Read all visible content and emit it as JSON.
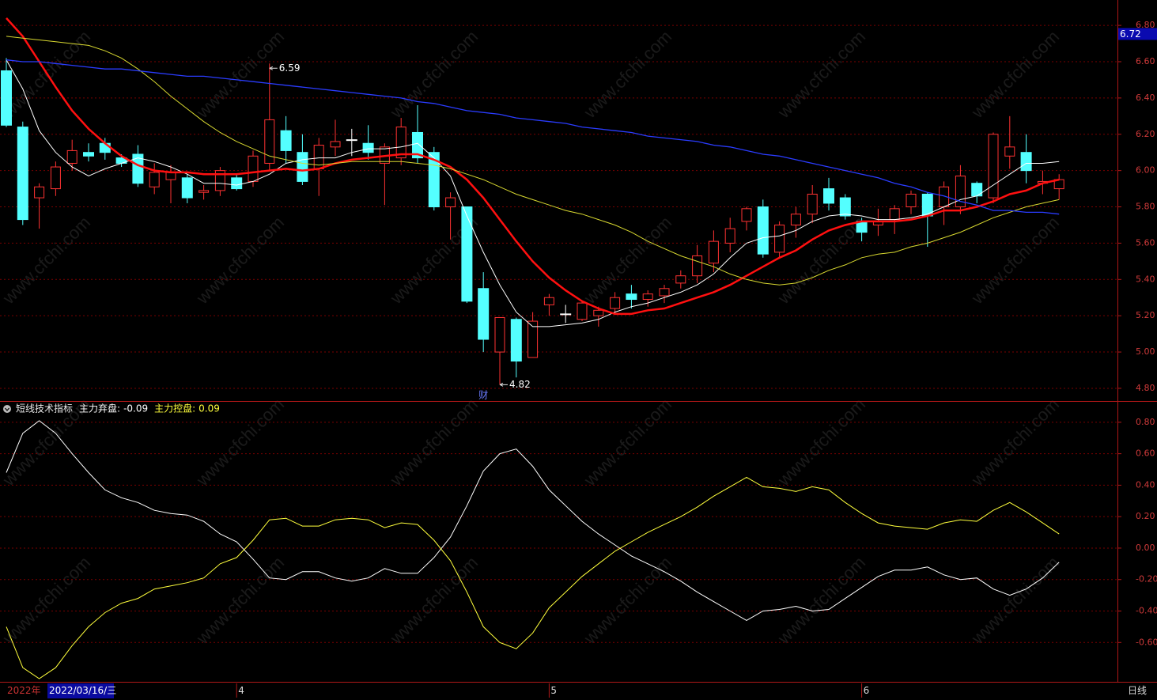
{
  "chart_data": {
    "type": "candlestick",
    "categories": [
      "2022年",
      null,
      null,
      null,
      null,
      null,
      null,
      null,
      null,
      null,
      null,
      null,
      null,
      null,
      "4",
      null,
      null,
      null,
      null,
      null,
      null,
      null,
      null,
      null,
      null,
      null,
      null,
      null,
      null,
      null,
      null,
      null,
      null,
      "5",
      null,
      null,
      null,
      null,
      null,
      null,
      null,
      null,
      null,
      null,
      null,
      null,
      null,
      null,
      null,
      null,
      null,
      null,
      "6",
      null,
      null,
      null,
      null,
      null,
      null,
      null,
      null,
      null,
      null,
      null,
      null
    ],
    "event_markers": [
      null,
      null,
      null,
      null,
      null,
      null,
      null,
      null,
      null,
      null,
      null,
      null,
      null,
      null,
      null,
      null,
      null,
      null,
      null,
      null,
      null,
      null,
      null,
      null,
      null,
      null,
      null,
      null,
      null,
      "财",
      null,
      null,
      null,
      null,
      null,
      null,
      null,
      null,
      null,
      null,
      null,
      null,
      null,
      null,
      null,
      null,
      null,
      null,
      null,
      null,
      null,
      null,
      null,
      null,
      null,
      null,
      null,
      null,
      null,
      null,
      null,
      null,
      null,
      null,
      null
    ],
    "cursor_date": "2022/03/16/三",
    "period": "日线",
    "watermark": "www.cfchi.com",
    "grid": true,
    "price_panel": {
      "ylim": [
        4.73,
        6.94
      ],
      "yticks": [
        {
          "value": 4.8,
          "label": "4.80"
        },
        {
          "value": 5.0,
          "label": "5.00"
        },
        {
          "value": 5.2,
          "label": "5.20"
        },
        {
          "value": 5.4,
          "label": "5.40"
        },
        {
          "value": 5.6,
          "label": "5.60"
        },
        {
          "value": 5.8,
          "label": "5.80"
        },
        {
          "value": 6.0,
          "label": "6.00"
        },
        {
          "value": 6.2,
          "label": "6.20"
        },
        {
          "value": 6.4,
          "label": "6.40"
        },
        {
          "value": 6.6,
          "label": "6.60"
        },
        {
          "value": 6.8,
          "label": "6.80"
        }
      ],
      "cursor_price": 6.72,
      "up_color": "#ff3232",
      "down_color": "#54ffff",
      "doji_color": "#ffffff",
      "annotate_high": 16,
      "annotate_low": 30,
      "candles": [
        {
          "open": 6.55,
          "high": 6.62,
          "low": 6.24,
          "close": 6.25
        },
        {
          "open": 6.24,
          "high": 6.27,
          "low": 5.7,
          "close": 5.73
        },
        {
          "open": 5.85,
          "high": 5.93,
          "low": 5.68,
          "close": 5.91
        },
        {
          "open": 5.9,
          "high": 6.05,
          "low": 5.86,
          "close": 6.02
        },
        {
          "open": 6.04,
          "high": 6.17,
          "low": 6.0,
          "close": 6.11
        },
        {
          "open": 6.1,
          "high": 6.15,
          "low": 6.05,
          "close": 6.08
        },
        {
          "open": 6.15,
          "high": 6.18,
          "low": 6.06,
          "close": 6.1
        },
        {
          "open": 6.07,
          "high": 6.09,
          "low": 6.02,
          "close": 6.04
        },
        {
          "open": 6.09,
          "high": 6.14,
          "low": 5.91,
          "close": 5.93
        },
        {
          "open": 5.91,
          "high": 6.04,
          "low": 5.87,
          "close": 5.99
        },
        {
          "open": 5.95,
          "high": 6.03,
          "low": 5.82,
          "close": 5.99
        },
        {
          "open": 5.96,
          "high": 5.98,
          "low": 5.82,
          "close": 5.85
        },
        {
          "open": 5.88,
          "high": 5.92,
          "low": 5.84,
          "close": 5.89
        },
        {
          "open": 5.89,
          "high": 6.02,
          "low": 5.86,
          "close": 6.0
        },
        {
          "open": 5.96,
          "high": 5.98,
          "low": 5.89,
          "close": 5.9
        },
        {
          "open": 5.94,
          "high": 6.11,
          "low": 5.91,
          "close": 6.08
        },
        {
          "open": 6.04,
          "high": 6.59,
          "low": 6.0,
          "close": 6.28
        },
        {
          "open": 6.22,
          "high": 6.3,
          "low": 6.04,
          "close": 6.11
        },
        {
          "open": 6.1,
          "high": 6.2,
          "low": 5.92,
          "close": 5.94
        },
        {
          "open": 6.01,
          "high": 6.18,
          "low": 5.86,
          "close": 6.14
        },
        {
          "open": 6.13,
          "high": 6.28,
          "low": 6.08,
          "close": 6.16
        },
        {
          "open": 6.17,
          "high": 6.23,
          "low": 6.08,
          "close": 6.17
        },
        {
          "open": 6.15,
          "high": 6.25,
          "low": 6.06,
          "close": 6.1
        },
        {
          "open": 6.04,
          "high": 6.15,
          "low": 5.81,
          "close": 6.13
        },
        {
          "open": 6.07,
          "high": 6.29,
          "low": 6.03,
          "close": 6.24
        },
        {
          "open": 6.21,
          "high": 6.36,
          "low": 6.04,
          "close": 6.07
        },
        {
          "open": 6.1,
          "high": 6.13,
          "low": 5.78,
          "close": 5.8
        },
        {
          "open": 5.8,
          "high": 5.88,
          "low": 5.62,
          "close": 5.85
        },
        {
          "open": 5.8,
          "high": 5.8,
          "low": 5.27,
          "close": 5.28
        },
        {
          "open": 5.35,
          "high": 5.44,
          "low": 5.0,
          "close": 5.07
        },
        {
          "open": 5.0,
          "high": 5.19,
          "low": 4.82,
          "close": 5.19
        },
        {
          "open": 5.18,
          "high": 5.19,
          "low": 4.86,
          "close": 4.95
        },
        {
          "open": 4.97,
          "high": 5.22,
          "low": 4.97,
          "close": 5.17
        },
        {
          "open": 5.26,
          "high": 5.32,
          "low": 5.2,
          "close": 5.3
        },
        {
          "open": 5.21,
          "high": 5.26,
          "low": 5.16,
          "close": 5.21
        },
        {
          "open": 5.18,
          "high": 5.28,
          "low": 5.17,
          "close": 5.27
        },
        {
          "open": 5.2,
          "high": 5.25,
          "low": 5.14,
          "close": 5.23
        },
        {
          "open": 5.24,
          "high": 5.33,
          "low": 5.21,
          "close": 5.3
        },
        {
          "open": 5.32,
          "high": 5.37,
          "low": 5.24,
          "close": 5.29
        },
        {
          "open": 5.29,
          "high": 5.34,
          "low": 5.25,
          "close": 5.32
        },
        {
          "open": 5.31,
          "high": 5.37,
          "low": 5.27,
          "close": 5.35
        },
        {
          "open": 5.38,
          "high": 5.45,
          "low": 5.35,
          "close": 5.42
        },
        {
          "open": 5.42,
          "high": 5.59,
          "low": 5.38,
          "close": 5.53
        },
        {
          "open": 5.49,
          "high": 5.67,
          "low": 5.44,
          "close": 5.61
        },
        {
          "open": 5.6,
          "high": 5.74,
          "low": 5.55,
          "close": 5.68
        },
        {
          "open": 5.72,
          "high": 5.8,
          "low": 5.67,
          "close": 5.79
        },
        {
          "open": 5.8,
          "high": 5.84,
          "low": 5.52,
          "close": 5.54
        },
        {
          "open": 5.55,
          "high": 5.72,
          "low": 5.52,
          "close": 5.7
        },
        {
          "open": 5.7,
          "high": 5.8,
          "low": 5.63,
          "close": 5.76
        },
        {
          "open": 5.76,
          "high": 5.92,
          "low": 5.71,
          "close": 5.87
        },
        {
          "open": 5.9,
          "high": 5.96,
          "low": 5.78,
          "close": 5.82
        },
        {
          "open": 5.85,
          "high": 5.87,
          "low": 5.73,
          "close": 5.75
        },
        {
          "open": 5.72,
          "high": 5.74,
          "low": 5.61,
          "close": 5.66
        },
        {
          "open": 5.7,
          "high": 5.79,
          "low": 5.64,
          "close": 5.72
        },
        {
          "open": 5.73,
          "high": 5.81,
          "low": 5.65,
          "close": 5.79
        },
        {
          "open": 5.8,
          "high": 5.89,
          "low": 5.76,
          "close": 5.87
        },
        {
          "open": 5.87,
          "high": 5.88,
          "low": 5.58,
          "close": 5.75
        },
        {
          "open": 5.8,
          "high": 5.94,
          "low": 5.7,
          "close": 5.91
        },
        {
          "open": 5.8,
          "high": 6.03,
          "low": 5.76,
          "close": 5.97
        },
        {
          "open": 5.93,
          "high": 5.94,
          "low": 5.82,
          "close": 5.86
        },
        {
          "open": 5.85,
          "high": 6.21,
          "low": 5.82,
          "close": 6.2
        },
        {
          "open": 6.08,
          "high": 6.3,
          "low": 6.01,
          "close": 6.13
        },
        {
          "open": 6.1,
          "high": 6.2,
          "low": 5.93,
          "close": 6.0
        },
        {
          "open": 5.93,
          "high": 6.0,
          "low": 5.87,
          "close": 5.94
        },
        {
          "open": 5.9,
          "high": 5.98,
          "low": 5.84,
          "close": 5.95
        }
      ],
      "series": [
        {
          "color": "#ffffff",
          "width": 1,
          "values": [
            6.61,
            6.45,
            6.22,
            6.1,
            6.02,
            5.97,
            6.01,
            6.04,
            6.07,
            6.05,
            6.02,
            5.98,
            5.93,
            5.93,
            5.92,
            5.94,
            5.98,
            6.04,
            6.06,
            6.07,
            6.07,
            6.1,
            6.12,
            6.12,
            6.13,
            6.15,
            6.07,
            5.97,
            5.75,
            5.55,
            5.37,
            5.22,
            5.14,
            5.14,
            5.15,
            5.16,
            5.18,
            5.22,
            5.25,
            5.27,
            5.3,
            5.33,
            5.37,
            5.43,
            5.52,
            5.6,
            5.63,
            5.64,
            5.67,
            5.72,
            5.75,
            5.76,
            5.75,
            5.73,
            5.73,
            5.74,
            5.76,
            5.8,
            5.84,
            5.86,
            5.92,
            5.98,
            6.04,
            6.04,
            6.05
          ]
        },
        {
          "color": "#ff1010",
          "width": 2.5,
          "values": [
            6.84,
            6.74,
            6.6,
            6.46,
            6.33,
            6.23,
            6.15,
            6.08,
            6.03,
            6.0,
            5.99,
            5.99,
            5.98,
            5.98,
            5.98,
            5.99,
            6.0,
            6.01,
            6.0,
            6.01,
            6.04,
            6.06,
            6.07,
            6.08,
            6.09,
            6.09,
            6.06,
            6.02,
            5.95,
            5.85,
            5.73,
            5.61,
            5.5,
            5.41,
            5.34,
            5.28,
            5.24,
            5.21,
            5.21,
            5.23,
            5.24,
            5.27,
            5.3,
            5.33,
            5.37,
            5.42,
            5.47,
            5.52,
            5.56,
            5.62,
            5.67,
            5.7,
            5.72,
            5.72,
            5.72,
            5.73,
            5.75,
            5.78,
            5.78,
            5.8,
            5.83,
            5.87,
            5.89,
            5.93,
            5.95
          ]
        },
        {
          "color": "#d8d830",
          "width": 1,
          "values": [
            6.74,
            6.73,
            6.72,
            6.71,
            6.7,
            6.69,
            6.66,
            6.62,
            6.56,
            6.49,
            6.41,
            6.34,
            6.27,
            6.21,
            6.16,
            6.12,
            6.08,
            6.06,
            6.04,
            6.03,
            6.04,
            6.05,
            6.05,
            6.05,
            6.05,
            6.04,
            6.03,
            6.01,
            5.98,
            5.95,
            5.91,
            5.87,
            5.84,
            5.81,
            5.78,
            5.76,
            5.73,
            5.7,
            5.66,
            5.61,
            5.57,
            5.53,
            5.5,
            5.47,
            5.43,
            5.4,
            5.38,
            5.37,
            5.38,
            5.41,
            5.45,
            5.48,
            5.52,
            5.54,
            5.55,
            5.58,
            5.6,
            5.63,
            5.66,
            5.7,
            5.74,
            5.77,
            5.8,
            5.82,
            5.84
          ]
        },
        {
          "color": "#2a3cff",
          "width": 1.3,
          "values": [
            6.61,
            6.6,
            6.6,
            6.59,
            6.58,
            6.57,
            6.56,
            6.56,
            6.55,
            6.54,
            6.53,
            6.52,
            6.52,
            6.51,
            6.5,
            6.49,
            6.48,
            6.47,
            6.46,
            6.45,
            6.44,
            6.43,
            6.42,
            6.41,
            6.4,
            6.38,
            6.37,
            6.35,
            6.33,
            6.32,
            6.31,
            6.29,
            6.28,
            6.27,
            6.26,
            6.24,
            6.23,
            6.22,
            6.21,
            6.19,
            6.18,
            6.17,
            6.16,
            6.14,
            6.13,
            6.11,
            6.09,
            6.08,
            6.06,
            6.04,
            6.02,
            6.0,
            5.98,
            5.96,
            5.93,
            5.91,
            5.88,
            5.86,
            5.83,
            5.81,
            5.78,
            5.78,
            5.77,
            5.77,
            5.76
          ]
        }
      ]
    },
    "indicator_panel": {
      "title": "短线技术指标",
      "ylim": [
        -0.85,
        0.93
      ],
      "yticks": [
        {
          "value": -0.6,
          "label": "-0.60"
        },
        {
          "value": -0.4,
          "label": "-0.40"
        },
        {
          "value": -0.2,
          "label": "-0.20"
        },
        {
          "value": 0.0,
          "label": "0.00"
        },
        {
          "value": 0.2,
          "label": "0.20"
        },
        {
          "value": 0.4,
          "label": "0.40"
        },
        {
          "value": 0.6,
          "label": "0.60"
        },
        {
          "value": 0.8,
          "label": "0.80"
        }
      ],
      "series": [
        {
          "name": "主力弃盘:",
          "color": "#ffffff",
          "values": [
            0.48,
            0.73,
            0.81,
            0.73,
            0.6,
            0.48,
            0.37,
            0.32,
            0.29,
            0.24,
            0.22,
            0.21,
            0.17,
            0.09,
            0.04,
            -0.07,
            -0.19,
            -0.2,
            -0.15,
            -0.15,
            -0.19,
            -0.21,
            -0.19,
            -0.13,
            -0.16,
            -0.16,
            -0.06,
            0.07,
            0.27,
            0.49,
            0.6,
            0.63,
            0.52,
            0.37,
            0.27,
            0.17,
            0.09,
            0.02,
            -0.05,
            -0.1,
            -0.15,
            -0.21,
            -0.28,
            -0.34,
            -0.4,
            -0.46,
            -0.4,
            -0.39,
            -0.37,
            -0.4,
            -0.39,
            -0.32,
            -0.25,
            -0.18,
            -0.14,
            -0.14,
            -0.12,
            -0.17,
            -0.2,
            -0.19,
            -0.26,
            -0.3,
            -0.26,
            -0.19,
            -0.09
          ]
        },
        {
          "name": "主力控盘:",
          "color": "#ffff3c",
          "values": [
            -0.5,
            -0.76,
            -0.83,
            -0.76,
            -0.62,
            -0.5,
            -0.41,
            -0.35,
            -0.32,
            -0.26,
            -0.24,
            -0.22,
            -0.19,
            -0.1,
            -0.06,
            0.05,
            0.18,
            0.19,
            0.14,
            0.14,
            0.18,
            0.19,
            0.18,
            0.13,
            0.16,
            0.15,
            0.05,
            -0.08,
            -0.28,
            -0.5,
            -0.6,
            -0.64,
            -0.54,
            -0.38,
            -0.28,
            -0.18,
            -0.1,
            -0.02,
            0.04,
            0.1,
            0.15,
            0.2,
            0.26,
            0.33,
            0.39,
            0.45,
            0.39,
            0.38,
            0.36,
            0.39,
            0.37,
            0.29,
            0.22,
            0.16,
            0.14,
            0.13,
            0.12,
            0.16,
            0.18,
            0.17,
            0.24,
            0.29,
            0.23,
            0.16,
            0.09
          ]
        }
      ]
    }
  }
}
